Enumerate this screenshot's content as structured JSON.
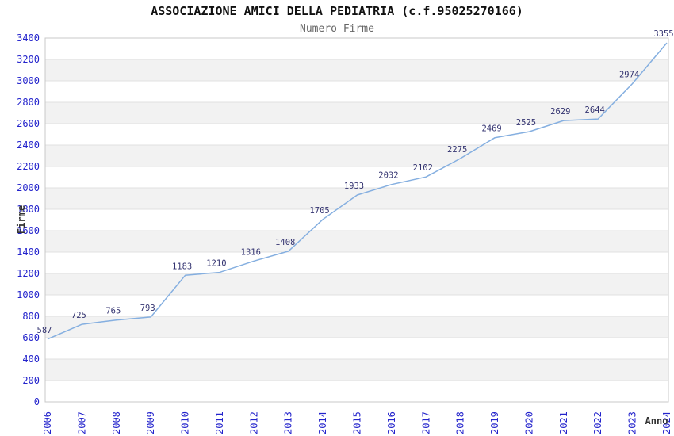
{
  "chart_data": {
    "type": "line",
    "title": "ASSOCIAZIONE AMICI DELLA PEDIATRIA (c.f.95025270166)",
    "subtitle": "Numero Firme",
    "xlabel": "Anno",
    "ylabel": "Firme",
    "categories": [
      "2006",
      "2007",
      "2008",
      "2009",
      "2010",
      "2011",
      "2012",
      "2013",
      "2014",
      "2015",
      "2016",
      "2017",
      "2018",
      "2019",
      "2020",
      "2021",
      "2022",
      "2023",
      "2024"
    ],
    "series": [
      {
        "name": "Numero Firme",
        "values": [
          587,
          725,
          765,
          793,
          1183,
          1210,
          1316,
          1408,
          1705,
          1933,
          2032,
          2102,
          2275,
          2469,
          2525,
          2629,
          2644,
          2974,
          3355
        ]
      }
    ],
    "ylim": [
      0,
      3400
    ],
    "ytick_step": 200,
    "grid": true,
    "legend": "none",
    "data_labels_visible": true,
    "colors": {
      "line": "#85afe0",
      "axis_tick_labels": "#2424cc",
      "data_labels": "#333370",
      "band_fill": "#f2f2f2",
      "gridline": "#e0e0e0",
      "plot_border": "#c8c8c8",
      "title": "#111111",
      "subtitle": "#666666",
      "axis_title": "#333333",
      "background": "#ffffff"
    }
  }
}
